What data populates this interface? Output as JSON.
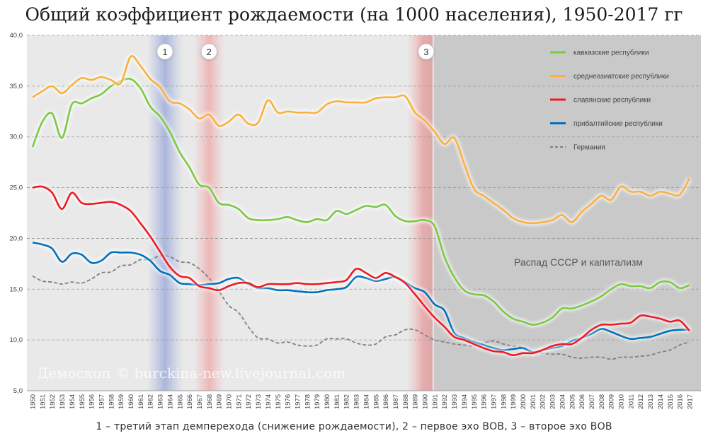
{
  "chart_data": {
    "type": "line",
    "title": "Общий коэффициент рождаемости (на 1000 населения), 1950-2017 гг",
    "caption": "1 – третий этап демперехода (снижение рождаемости), 2 – первое эхо ВОВ, 3 – второе эхо ВОВ",
    "watermark": "Демоскоп © burckina-new.livejournal.com",
    "region_label": "Распад СССР и капитализм",
    "xlabel": "",
    "ylabel": "",
    "ylim": [
      5,
      40
    ],
    "yticks": [
      "5,0",
      "10,0",
      "15,0",
      "20,0",
      "25,0",
      "30,0",
      "35,0",
      "40,0"
    ],
    "x": [
      1950,
      1951,
      1952,
      1953,
      1954,
      1955,
      1956,
      1957,
      1958,
      1959,
      1960,
      1961,
      1962,
      1963,
      1964,
      1965,
      1966,
      1967,
      1968,
      1969,
      1970,
      1971,
      1972,
      1973,
      1974,
      1975,
      1976,
      1977,
      1978,
      1979,
      1980,
      1981,
      1982,
      1983,
      1984,
      1985,
      1986,
      1987,
      1988,
      1989,
      1990,
      1991,
      1992,
      1993,
      1994,
      1995,
      1996,
      1997,
      1998,
      1999,
      2000,
      2001,
      2002,
      2003,
      2004,
      2005,
      2006,
      2007,
      2008,
      2009,
      2010,
      2011,
      2012,
      2013,
      2014,
      2015,
      2016,
      2017
    ],
    "series": [
      {
        "name": "кавказские республики",
        "color": "#7ac943",
        "values": [
          29.0,
          31.5,
          32.3,
          29.9,
          33.2,
          33.3,
          33.8,
          34.2,
          35.0,
          35.5,
          35.7,
          34.8,
          33.0,
          32.0,
          30.5,
          28.5,
          27.0,
          25.3,
          25.0,
          23.5,
          23.3,
          22.9,
          22.0,
          21.8,
          21.8,
          21.9,
          22.1,
          21.8,
          21.6,
          21.9,
          21.8,
          22.7,
          22.4,
          22.8,
          23.2,
          23.1,
          23.3,
          22.2,
          21.7,
          21.7,
          21.8,
          21.2,
          18.2,
          16.2,
          14.9,
          14.5,
          14.4,
          13.8,
          12.8,
          12.1,
          11.8,
          11.5,
          11.7,
          12.2,
          13.1,
          13.1,
          13.4,
          13.8,
          14.3,
          15.0,
          15.5,
          15.3,
          15.3,
          15.1,
          15.7,
          15.7,
          15.1,
          15.4
        ]
      },
      {
        "name": "среднеазиатские республики",
        "color": "#fbb03b",
        "values": [
          33.9,
          34.5,
          35.0,
          34.3,
          35.1,
          35.8,
          35.6,
          35.9,
          35.6,
          35.3,
          37.9,
          37.0,
          35.7,
          34.9,
          33.5,
          33.3,
          32.7,
          31.8,
          32.2,
          31.1,
          31.5,
          32.2,
          31.3,
          31.4,
          33.6,
          32.4,
          32.5,
          32.4,
          32.4,
          32.4,
          33.2,
          33.5,
          33.4,
          33.4,
          33.4,
          33.8,
          33.9,
          33.9,
          34.0,
          32.4,
          31.6,
          30.5,
          29.3,
          29.9,
          27.4,
          24.9,
          24.2,
          23.5,
          22.8,
          22.0,
          21.6,
          21.5,
          21.6,
          21.8,
          22.3,
          21.6,
          22.6,
          23.4,
          24.2,
          23.8,
          25.1,
          24.6,
          24.6,
          24.2,
          24.6,
          24.4,
          24.3,
          25.9
        ]
      },
      {
        "name": "славянские республики",
        "color": "#ed1c24",
        "values": [
          25.0,
          25.1,
          24.5,
          22.9,
          24.5,
          23.5,
          23.4,
          23.5,
          23.6,
          23.3,
          22.7,
          21.5,
          20.2,
          18.7,
          17.2,
          16.3,
          16.1,
          15.3,
          15.1,
          14.9,
          15.3,
          15.6,
          15.6,
          15.2,
          15.5,
          15.5,
          15.5,
          15.6,
          15.5,
          15.5,
          15.6,
          15.7,
          15.9,
          17.0,
          16.6,
          16.1,
          16.6,
          16.2,
          15.6,
          14.5,
          13.3,
          12.2,
          11.3,
          10.3,
          10.0,
          9.6,
          9.2,
          8.9,
          8.8,
          8.5,
          8.7,
          8.7,
          9.0,
          9.4,
          9.6,
          9.6,
          10.2,
          11.0,
          11.5,
          11.5,
          11.6,
          11.7,
          12.4,
          12.3,
          12.1,
          11.8,
          11.9,
          10.9
        ]
      },
      {
        "name": "прибалтийские республики",
        "color": "#0071bc",
        "values": [
          19.6,
          19.4,
          19.0,
          17.7,
          18.5,
          18.4,
          17.6,
          17.8,
          18.6,
          18.6,
          18.6,
          18.4,
          17.8,
          16.8,
          16.4,
          15.6,
          15.5,
          15.4,
          15.5,
          15.6,
          16.0,
          16.1,
          15.5,
          15.1,
          15.1,
          14.9,
          14.9,
          14.8,
          14.7,
          14.7,
          14.9,
          15.0,
          15.2,
          16.2,
          16.1,
          15.8,
          16.0,
          16.2,
          15.7,
          15.1,
          14.7,
          13.5,
          12.9,
          10.7,
          10.2,
          9.8,
          9.5,
          9.2,
          9.0,
          9.1,
          9.2,
          8.8,
          9.0,
          9.2,
          9.4,
          9.9,
          10.2,
          10.6,
          11.1,
          10.8,
          10.4,
          10.1,
          10.2,
          10.3,
          10.6,
          10.9,
          11.0,
          11.0
        ]
      },
      {
        "name": "Германия",
        "color": "#808080",
        "dashed": true,
        "values": [
          16.3,
          15.8,
          15.7,
          15.5,
          15.7,
          15.6,
          16.0,
          16.6,
          16.7,
          17.3,
          17.4,
          17.9,
          17.9,
          18.3,
          18.2,
          17.7,
          17.6,
          17.0,
          16.1,
          14.8,
          13.4,
          12.7,
          11.3,
          10.2,
          10.1,
          9.7,
          9.8,
          9.5,
          9.4,
          9.5,
          10.1,
          10.1,
          10.1,
          9.7,
          9.5,
          9.6,
          10.3,
          10.5,
          11.0,
          11.0,
          10.5,
          10.0,
          9.8,
          9.6,
          9.5,
          9.4,
          9.7,
          9.9,
          9.6,
          9.4,
          9.3,
          8.9,
          8.7,
          8.6,
          8.6,
          8.3,
          8.2,
          8.3,
          8.3,
          8.1,
          8.3,
          8.3,
          8.4,
          8.5,
          8.8,
          9.0,
          9.5,
          9.8
        ]
      }
    ],
    "events": [
      {
        "label": "1",
        "year": 1963.5,
        "color": "#8c9ed1"
      },
      {
        "label": "2",
        "year": 1968,
        "color": "#e79a9a"
      },
      {
        "label": "3",
        "year": 1990.5,
        "color": "#e79a9a"
      }
    ],
    "shaded_period": {
      "from_year": 1991,
      "to_year": 2017
    },
    "legend_position": "top-right",
    "grid": true
  }
}
